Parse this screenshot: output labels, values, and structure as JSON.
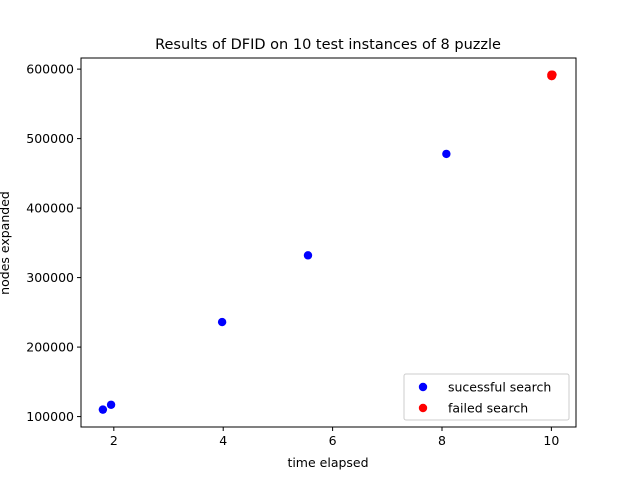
{
  "chart_data": {
    "type": "scatter",
    "title": "Results of DFID on 10 test instances of 8 puzzle",
    "xlabel": "time elapsed",
    "ylabel": "nodes expanded",
    "xlim": [
      1.4,
      10.45
    ],
    "ylim": [
      85000,
      616000
    ],
    "x_ticks": [
      2,
      4,
      6,
      8,
      10
    ],
    "y_ticks": [
      100000,
      200000,
      300000,
      400000,
      500000,
      600000
    ],
    "grid": false,
    "legend_position": "lower-right",
    "series": [
      {
        "name": "sucessful search",
        "color": "#0000ff",
        "points": [
          {
            "x": 1.8,
            "y": 110000
          },
          {
            "x": 1.95,
            "y": 117000
          },
          {
            "x": 3.98,
            "y": 236000
          },
          {
            "x": 5.55,
            "y": 332000
          },
          {
            "x": 8.08,
            "y": 478000
          }
        ]
      },
      {
        "name": "failed search",
        "color": "#ff0000",
        "points": [
          {
            "x": 10.0,
            "y": 590000
          },
          {
            "x": 10.01,
            "y": 591000
          },
          {
            "x": 10.02,
            "y": 592000
          },
          {
            "x": 10.0,
            "y": 592000
          },
          {
            "x": 10.01,
            "y": 590000
          }
        ]
      }
    ]
  }
}
